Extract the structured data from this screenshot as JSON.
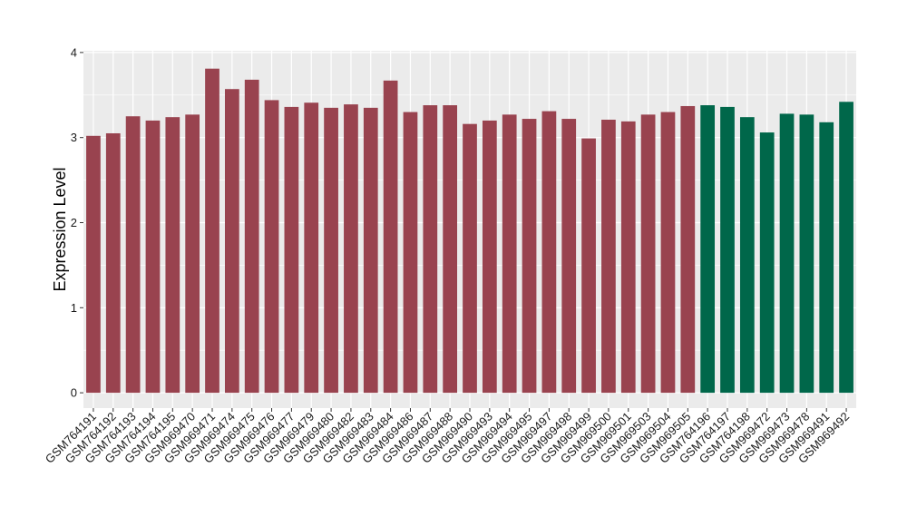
{
  "chart_data": {
    "type": "bar",
    "title": "",
    "xlabel": "",
    "ylabel": "Expression Level",
    "ylim": [
      -0.18,
      4.02
    ],
    "yticks": [
      0,
      1,
      2,
      3,
      4
    ],
    "grid": true,
    "legend": "none",
    "colors": {
      "group1": "#99434F",
      "group2": "#00674A",
      "panel": "#EBEBEB",
      "gridline": "#FFFFFF"
    },
    "categories": [
      "GSM764191",
      "GSM764192",
      "GSM764193",
      "GSM764194",
      "GSM764195",
      "GSM969470",
      "GSM969471",
      "GSM969474",
      "GSM969475",
      "GSM969476",
      "GSM969477",
      "GSM969479",
      "GSM969480",
      "GSM969482",
      "GSM969483",
      "GSM969484",
      "GSM969486",
      "GSM969487",
      "GSM969488",
      "GSM969490",
      "GSM969493",
      "GSM969494",
      "GSM969495",
      "GSM969497",
      "GSM969498",
      "GSM969499",
      "GSM969500",
      "GSM969501",
      "GSM969503",
      "GSM969504",
      "GSM969505",
      "GSM764196",
      "GSM764197",
      "GSM764198",
      "GSM969472",
      "GSM969473",
      "GSM969478",
      "GSM969491",
      "GSM969492"
    ],
    "values": [
      3.02,
      3.05,
      3.25,
      3.2,
      3.24,
      3.27,
      3.81,
      3.57,
      3.68,
      3.44,
      3.36,
      3.41,
      3.35,
      3.39,
      3.35,
      3.67,
      3.3,
      3.38,
      3.38,
      3.16,
      3.2,
      3.27,
      3.22,
      3.31,
      3.22,
      2.99,
      3.21,
      3.19,
      3.27,
      3.3,
      3.37,
      3.38,
      3.36,
      3.24,
      3.06,
      3.28,
      3.27,
      3.18,
      3.42
    ],
    "groups": [
      1,
      1,
      1,
      1,
      1,
      1,
      1,
      1,
      1,
      1,
      1,
      1,
      1,
      1,
      1,
      1,
      1,
      1,
      1,
      1,
      1,
      1,
      1,
      1,
      1,
      1,
      1,
      1,
      1,
      1,
      1,
      2,
      2,
      2,
      2,
      2,
      2,
      2,
      2
    ]
  }
}
